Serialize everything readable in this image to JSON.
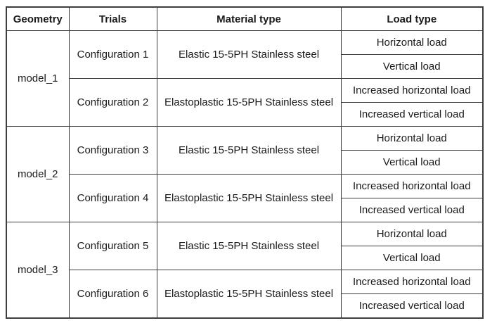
{
  "table": {
    "headers": [
      "Geometry",
      "Trials",
      "Material type",
      "Load type"
    ],
    "groups": [
      {
        "geometry": "model_1",
        "configs": [
          {
            "trial": "Configuration 1",
            "material": "Elastic 15-5PH Stainless steel",
            "loads": [
              "Horizontal load",
              "Vertical load"
            ]
          },
          {
            "trial": "Configuration 2",
            "material": "Elastoplastic 15-5PH Stainless steel",
            "loads": [
              "Increased horizontal load",
              "Increased vertical load"
            ]
          }
        ]
      },
      {
        "geometry": "model_2",
        "configs": [
          {
            "trial": "Configuration 3",
            "material": "Elastic 15-5PH Stainless steel",
            "loads": [
              "Horizontal load",
              "Vertical load"
            ]
          },
          {
            "trial": "Configuration 4",
            "material": "Elastoplastic 15-5PH Stainless steel",
            "loads": [
              "Increased horizontal load",
              "Increased vertical load"
            ]
          }
        ]
      },
      {
        "geometry": "model_3",
        "configs": [
          {
            "trial": "Configuration 5",
            "material": "Elastic 15-5PH Stainless steel",
            "loads": [
              "Horizontal load",
              "Vertical load"
            ]
          },
          {
            "trial": "Configuration 6",
            "material": "Elastoplastic 15-5PH Stainless steel",
            "loads": [
              "Increased horizontal load",
              "Increased vertical load"
            ]
          }
        ]
      }
    ]
  },
  "colors": {
    "border": "#3d3d3d",
    "text": "#1a1a1a",
    "background": "#ffffff"
  }
}
